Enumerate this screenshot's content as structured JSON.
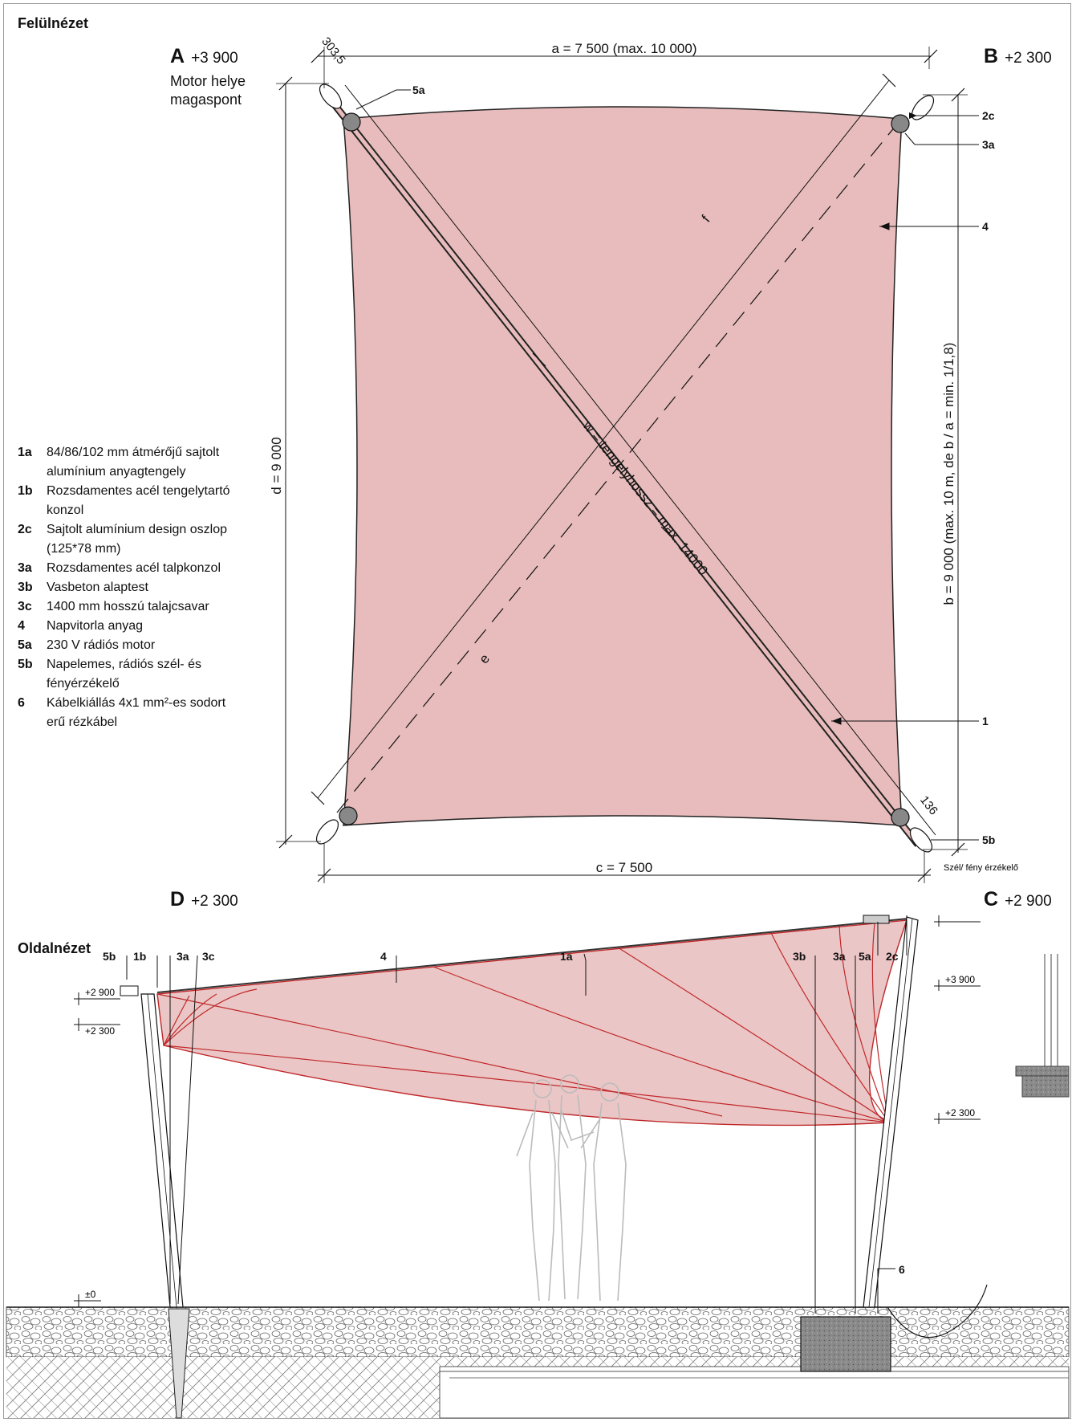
{
  "titles": {
    "top_view": "Felülnézet",
    "side_view": "Oldalnézet"
  },
  "corners": {
    "A": {
      "letter": "A",
      "height": "+3 900",
      "note1": "Motor helye",
      "note2": "magaspont"
    },
    "B": {
      "letter": "B",
      "height": "+2 300"
    },
    "C": {
      "letter": "C",
      "height": "+2 900"
    },
    "D": {
      "letter": "D",
      "height": "+2 300"
    }
  },
  "dimensions": {
    "a": "a = 7 500 (max. 10 000)",
    "b": "b = 9 000 (max. 10 m, de b / a = min. 1/1,8)",
    "c": "c = 7 500",
    "d": "d = 9 000",
    "e": "e",
    "f": "f",
    "w": "w = tengelyhossz = max. 14000",
    "small_top": "303,5",
    "small_bottom": "136"
  },
  "top_callouts": {
    "c5a": "5a",
    "c2c": "2c",
    "c3a": "3a",
    "c4": "4",
    "c1": "1",
    "c5b": "5b",
    "sensor": "Szél/ fény érzékelő"
  },
  "legend": [
    {
      "code": "1a",
      "text": "84/86/102 mm átmérőjű sajtolt alumínium anyagtengely"
    },
    {
      "code": "1b",
      "text": "Rozsdamentes acél tengelytartó konzol"
    },
    {
      "code": "2c",
      "text": "Sajtolt alumínium design oszlop (125*78 mm)"
    },
    {
      "code": "3a",
      "text": "Rozsdamentes acél talpkonzol"
    },
    {
      "code": "3b",
      "text": "Vasbeton alaptest"
    },
    {
      "code": "3c",
      "text": "1400 mm hosszú talajcsavar"
    },
    {
      "code": "4",
      "text": "Napvitorla anyag"
    },
    {
      "code": "5a",
      "text": "230 V rádiós motor"
    },
    {
      "code": "5b",
      "text": "Napelemes, rádiós szél- és fényérzékelő"
    },
    {
      "code": "6",
      "text": "Kábelkiállás 4x1 mm²-es sodort erű rézkábel"
    }
  ],
  "side_callouts": {
    "s5b": "5b",
    "s1b": "1b",
    "s3a": "3a",
    "s3c": "3c",
    "s4": "4",
    "s1a": "1a",
    "s3b": "3b",
    "s3a2": "3a",
    "s5a": "5a",
    "s2c": "2c",
    "s6": "6"
  },
  "levels": {
    "l3900": "+3 900",
    "l2900": "+2 900",
    "l2300a": "+2 300",
    "l2300b": "+2 300",
    "l0": "±0"
  },
  "colors": {
    "sail": "#e8bcbc",
    "sail_line": "#c0282a",
    "ink": "#111111"
  }
}
